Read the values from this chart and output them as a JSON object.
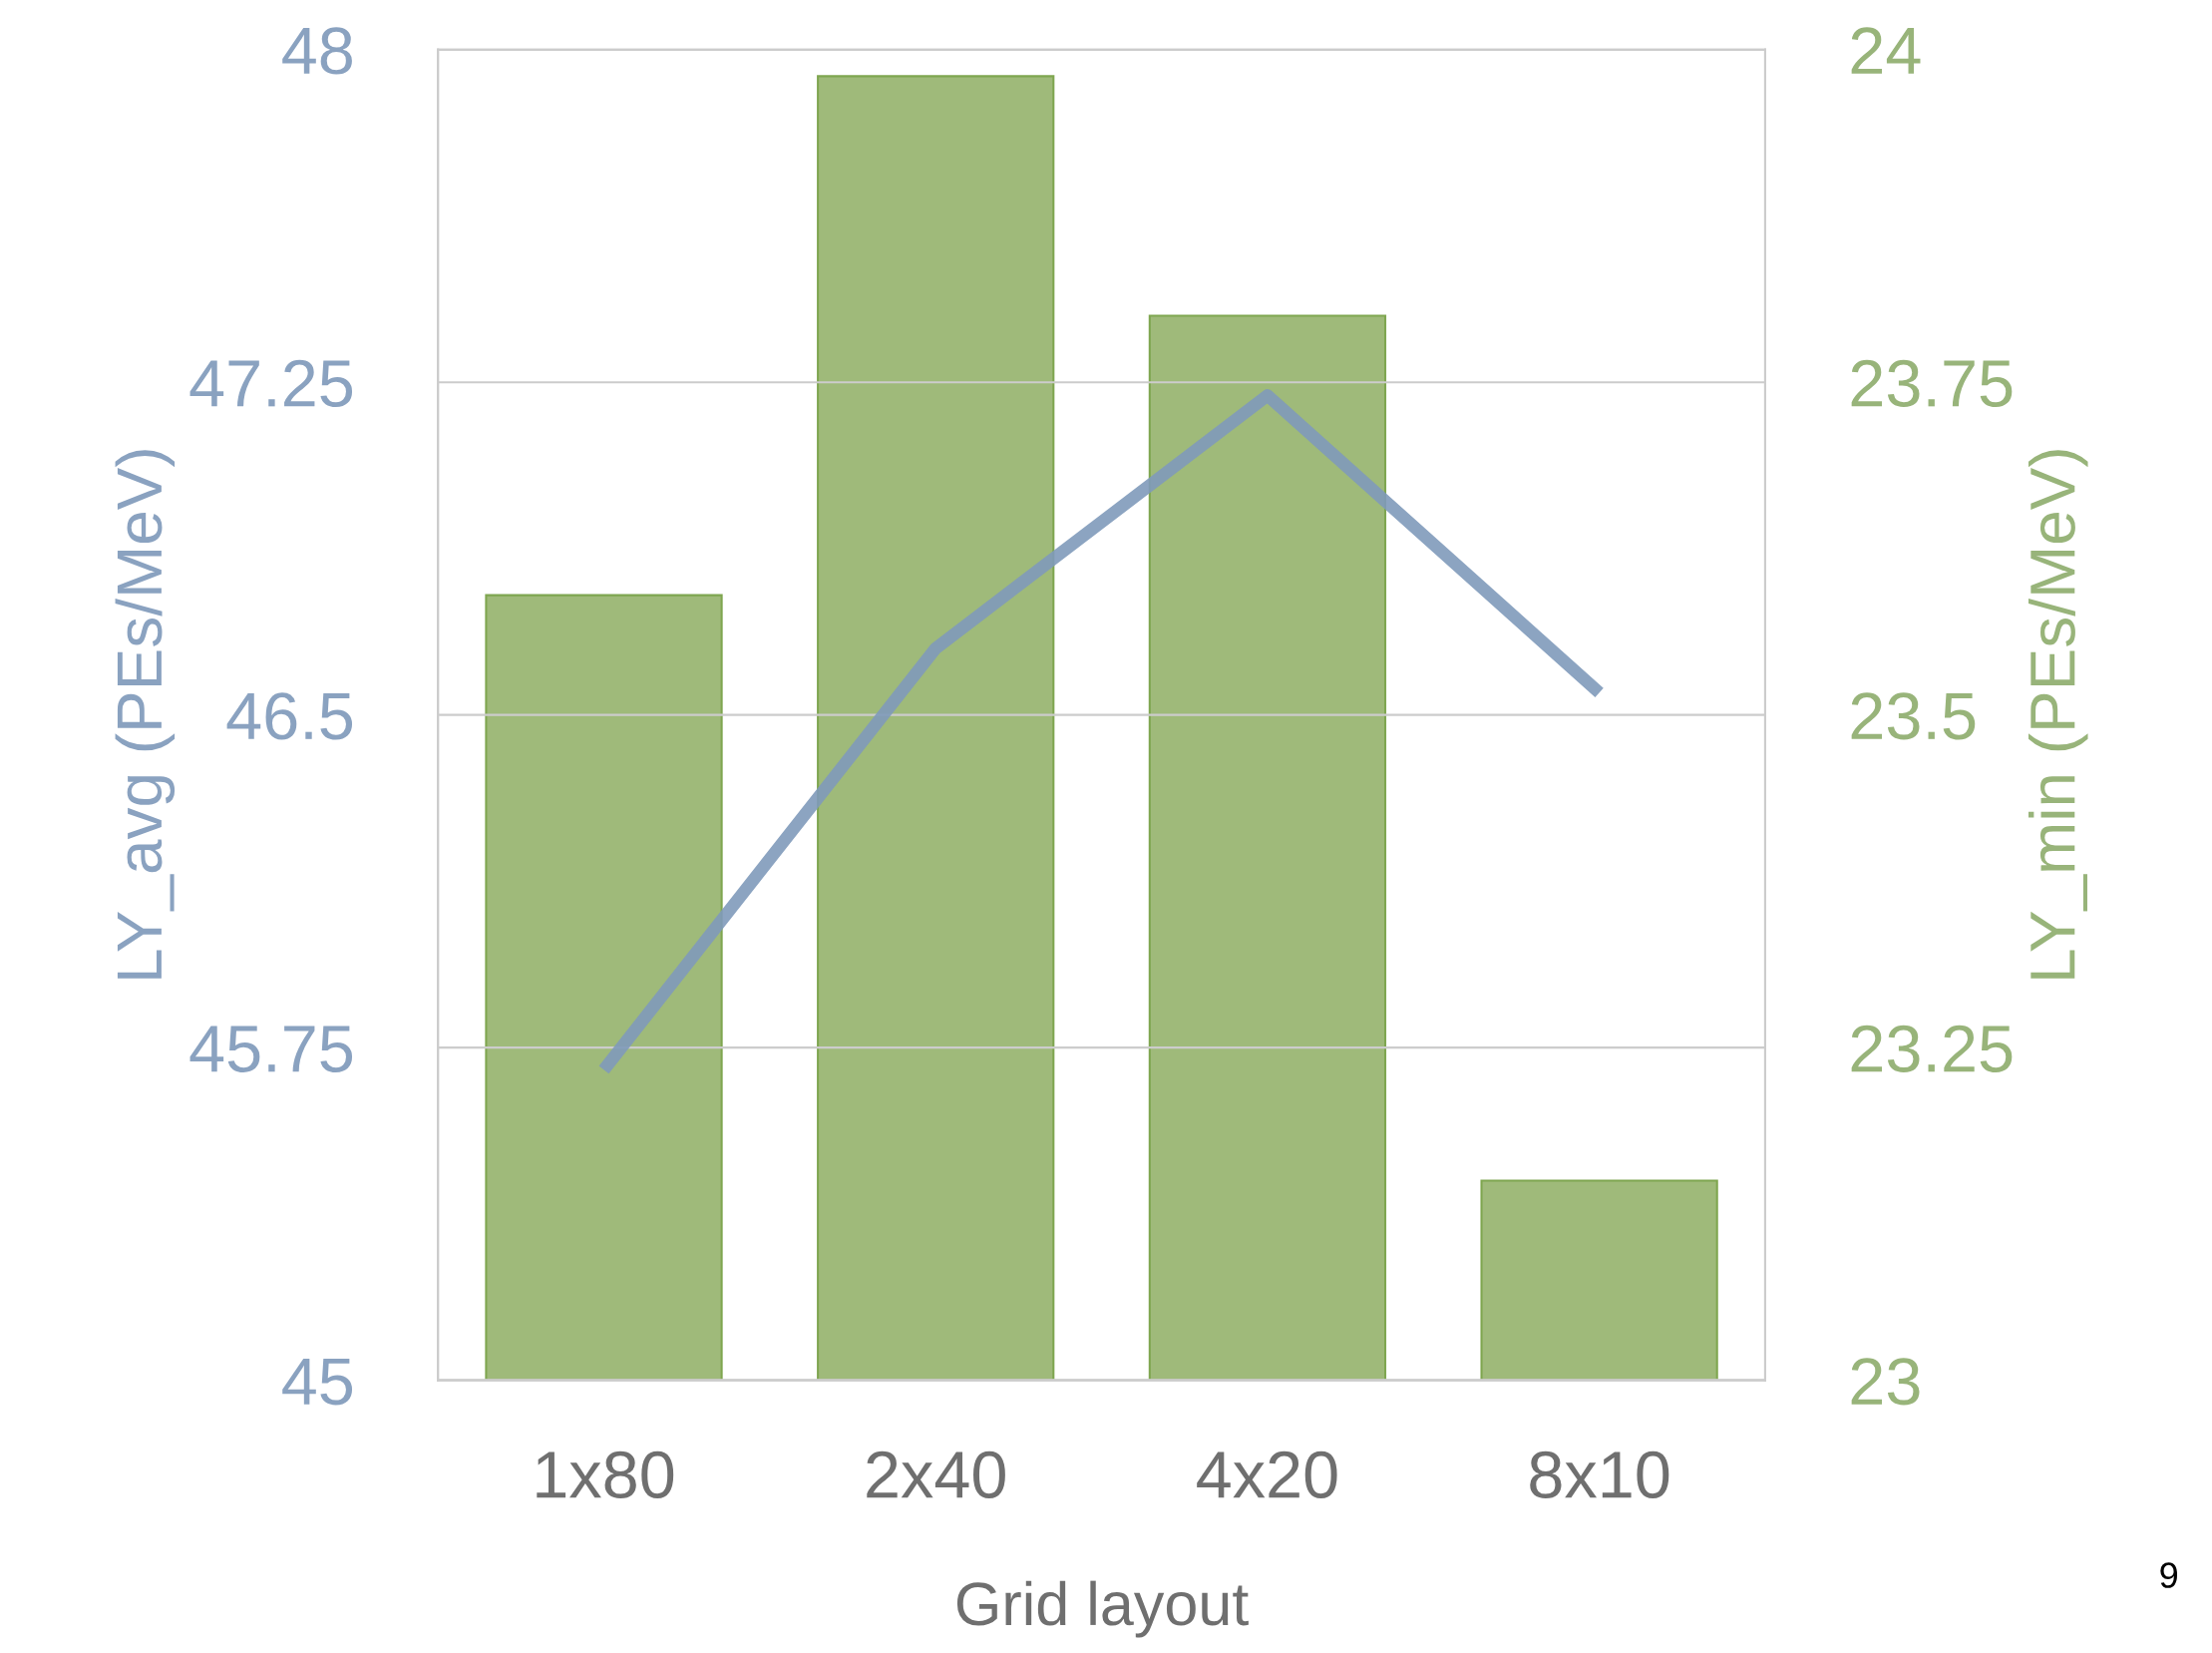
{
  "chart_data": {
    "type": "bar",
    "xlabel": "Grid layout",
    "ylabel": "LY_avg (PEs/MeV)",
    "y2label": "LY_min (PEs/MeV)",
    "categories": [
      "1x80",
      "2x40",
      "4x20",
      "8x10"
    ],
    "series": [
      {
        "axis": "y2",
        "color": "#9fba7a",
        "values": [
          23.59,
          23.98,
          23.8,
          23.15
        ]
      },
      {
        "type": "line",
        "axis": "y",
        "color": "#7f9aba",
        "values": [
          45.7,
          46.65,
          47.22,
          46.55
        ]
      }
    ],
    "ylim": [
      45,
      48
    ],
    "yticks": [
      45,
      45.75,
      46.5,
      47.25,
      48
    ],
    "y2lim": [
      23,
      24
    ],
    "y2ticks": [
      23,
      23.25,
      23.5,
      23.75,
      24
    ],
    "grid": "y",
    "annotations": [
      "9"
    ]
  }
}
